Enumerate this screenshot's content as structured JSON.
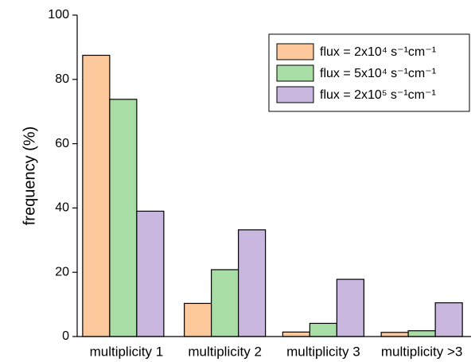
{
  "chart_data": {
    "type": "bar",
    "y_label": "frequency (%)",
    "categories": [
      "multiplicity 1",
      "multiplicity 2",
      "multiplicity 3",
      "multiplicity >3"
    ],
    "series": [
      {
        "name": "flux = 2x10⁴ s⁻¹cm⁻¹",
        "color": "#fdc99c",
        "values": [
          87.5,
          10.3,
          1.4,
          1.3
        ]
      },
      {
        "name": "flux = 5x10⁴ s⁻¹cm⁻¹",
        "color": "#a8dea6",
        "values": [
          73.8,
          20.8,
          4.1,
          1.8
        ]
      },
      {
        "name": "flux = 2x10⁵ s⁻¹cm⁻¹",
        "color": "#c9b7df",
        "values": [
          39,
          33.2,
          17.8,
          10.5
        ]
      }
    ],
    "ylim": [
      0,
      100
    ],
    "yticks": [
      0,
      20,
      40,
      60,
      80,
      100
    ],
    "legend": "top-right"
  }
}
